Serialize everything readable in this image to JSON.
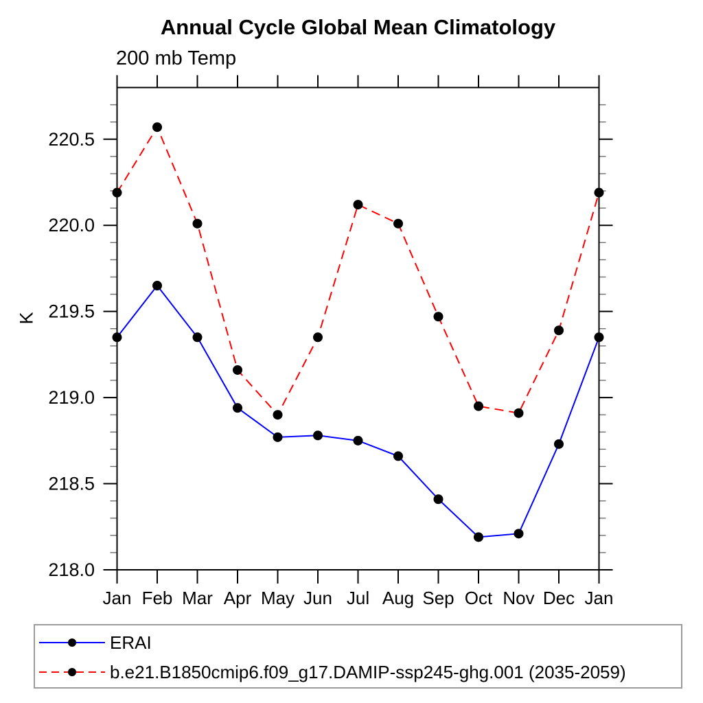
{
  "page": {
    "background": "#ffffff"
  },
  "chart_data": {
    "type": "line",
    "title": "Annual Cycle Global Mean Climatology",
    "subtitle": "200 mb Temp",
    "ylabel": "K",
    "xlabel": "",
    "categories": [
      "Jan",
      "Feb",
      "Mar",
      "Apr",
      "May",
      "Jun",
      "Jul",
      "Aug",
      "Sep",
      "Oct",
      "Nov",
      "Dec",
      "Jan"
    ],
    "ylim": [
      218.0,
      220.8
    ],
    "ytick_major": [
      218.0,
      218.5,
      219.0,
      219.5,
      220.0,
      220.5
    ],
    "ytick_labels": [
      "218.0",
      "218.5",
      "219.0",
      "219.5",
      "220.0",
      "220.5"
    ],
    "ytick_minor_step": 0.1,
    "grid": false,
    "legend_position": "bottom-left-box",
    "axis_color": "#000000",
    "minor_tick_color": "#6e6e6e",
    "series": [
      {
        "name": "ERAI",
        "color": "#0000ff",
        "line_style": "solid",
        "marker": "circle",
        "marker_color": "#000000",
        "values": [
          219.35,
          219.65,
          219.35,
          218.94,
          218.77,
          218.78,
          218.75,
          218.66,
          218.41,
          218.19,
          218.21,
          218.73,
          219.35
        ]
      },
      {
        "name": "b.e21.B1850cmip6.f09_g17.DAMIP-ssp245-ghg.001 (2035-2059)",
        "color": "#ff0000",
        "line_style": "dashed",
        "marker": "circle",
        "marker_color": "#000000",
        "values": [
          220.19,
          220.57,
          220.01,
          219.16,
          218.9,
          219.35,
          220.12,
          220.01,
          219.47,
          218.95,
          218.91,
          219.39,
          220.19
        ]
      }
    ]
  }
}
